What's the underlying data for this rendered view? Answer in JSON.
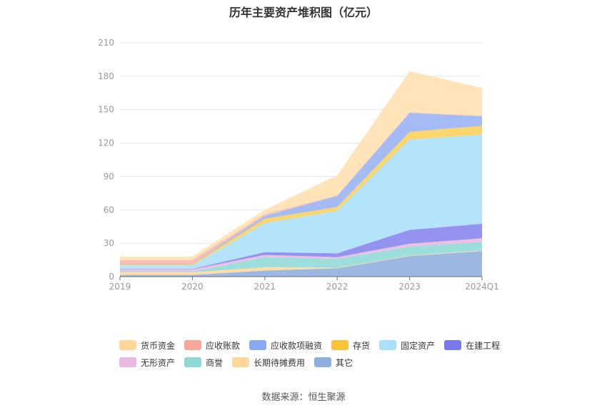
{
  "chart_data": {
    "type": "area",
    "stacked": true,
    "title": "历年主要资产堆积图（亿元）",
    "categories": [
      "2019",
      "2020",
      "2021",
      "2022",
      "2023",
      "2024Q1"
    ],
    "ylim": [
      0,
      210
    ],
    "yticks": [
      0,
      30,
      60,
      90,
      120,
      150,
      180,
      210
    ],
    "grid": true,
    "legend_position": "bottom",
    "series": [
      {
        "name": "其它",
        "color": "#8eaedd",
        "values": [
          1.5,
          1.5,
          5.5,
          7.5,
          18.5,
          23
        ]
      },
      {
        "name": "长期待摊费用",
        "color": "#ffd79a",
        "values": [
          2.5,
          2.5,
          3,
          0.5,
          0.5,
          0.5
        ]
      },
      {
        "name": "商誉",
        "color": "#8ed9d6",
        "values": [
          0.5,
          0.5,
          9,
          8,
          8,
          7.5
        ]
      },
      {
        "name": "无形资产",
        "color": "#eab8e0",
        "values": [
          2,
          2,
          2,
          1.5,
          2.5,
          3.5
        ]
      },
      {
        "name": "在建工程",
        "color": "#8585ee",
        "values": [
          0.5,
          0.5,
          2.5,
          3.5,
          12.5,
          13
        ]
      },
      {
        "name": "固定资产",
        "color": "#a9e0fa",
        "values": [
          3,
          3,
          26,
          38,
          81,
          80
        ]
      },
      {
        "name": "存货",
        "color": "#fdd05a",
        "values": [
          1,
          1,
          4,
          3.5,
          7,
          8
        ]
      },
      {
        "name": "应收款项融资",
        "color": "#99b2f5",
        "values": [
          0.5,
          0.5,
          2.5,
          10,
          17,
          8.5
        ]
      },
      {
        "name": "应收账款",
        "color": "#f8b6a8",
        "values": [
          3.5,
          3.5,
          1.5,
          0.5,
          0.5,
          0.5
        ]
      },
      {
        "name": "货币资金",
        "color": "#ffe0b0",
        "values": [
          3,
          3,
          4,
          18,
          37,
          25
        ]
      }
    ]
  },
  "legend_rows": [
    [
      {
        "label": "货币资金",
        "color": "#ffd79a"
      },
      {
        "label": "应收账款",
        "color": "#f7a898"
      },
      {
        "label": "应收款项融资",
        "color": "#8aa9f4"
      },
      {
        "label": "存货",
        "color": "#fcc23a"
      },
      {
        "label": "固定资产",
        "color": "#a9e0fa"
      },
      {
        "label": "在建工程",
        "color": "#7878ee"
      }
    ],
    [
      {
        "label": "无形资产",
        "color": "#eab8e0"
      },
      {
        "label": "商誉",
        "color": "#8ed9d6"
      },
      {
        "label": "长期待摊费用",
        "color": "#ffd79a"
      },
      {
        "label": "其它",
        "color": "#8eaedd"
      }
    ]
  ],
  "source": "数据来源：恒生聚源"
}
